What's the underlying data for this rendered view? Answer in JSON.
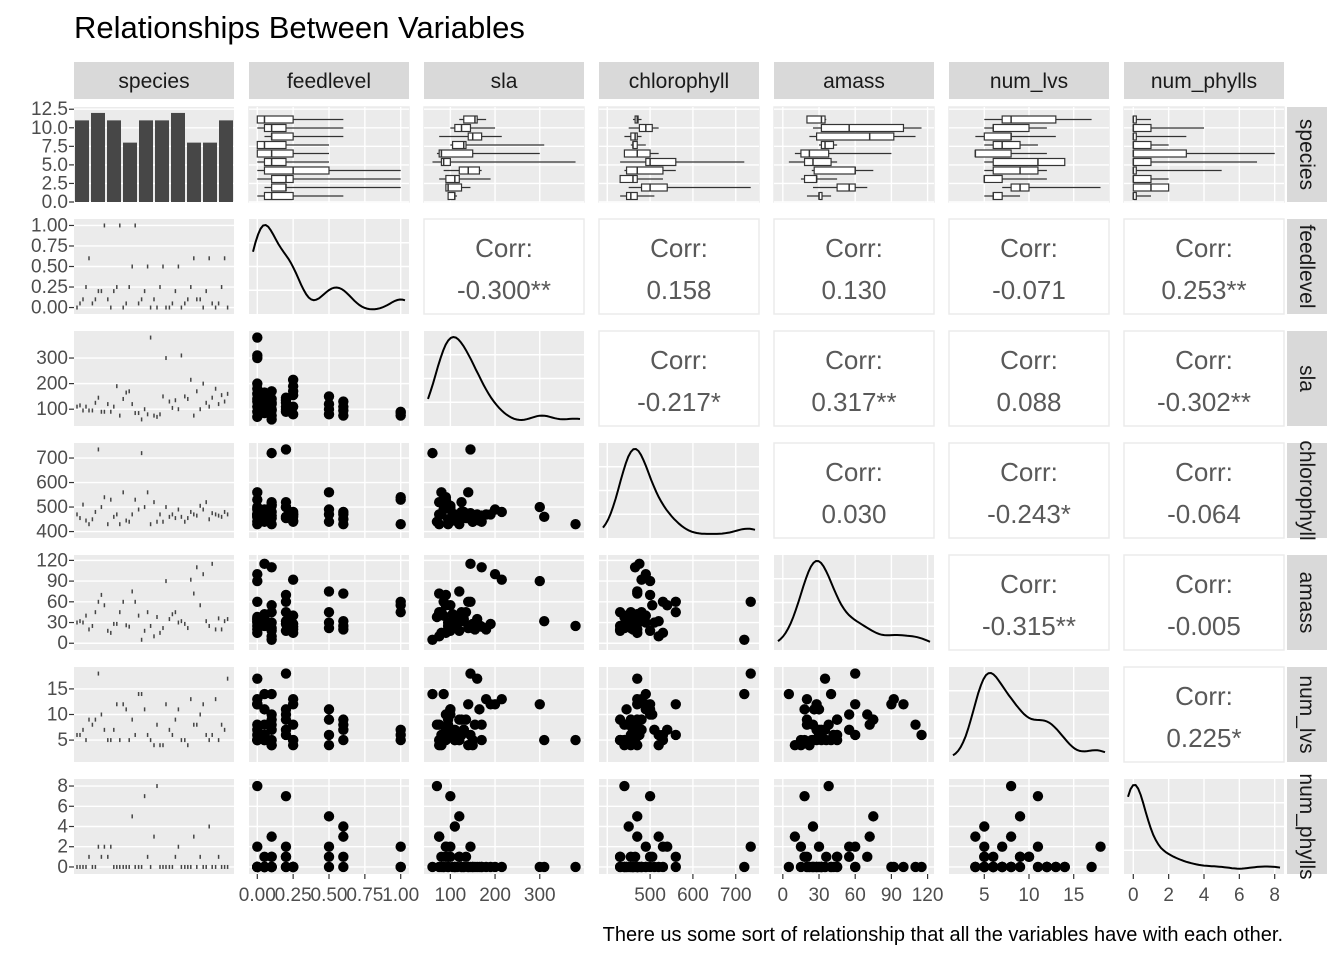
{
  "chart_data": {
    "type": "scatter",
    "title": "Relationships Between Variables",
    "caption": "There us some sort of relationship that all the variables have with each other.",
    "variables": [
      "species",
      "feedlevel",
      "sla",
      "chlorophyll",
      "amass",
      "num_lvs",
      "num_phylls"
    ],
    "axes": {
      "species": {
        "ticks": [
          "0.0",
          "2.5",
          "5.0",
          "7.5",
          "10.0",
          "12.5"
        ],
        "ylim": [
          0,
          12.5
        ]
      },
      "feedlevel": {
        "ticks": [
          "0.00",
          "0.25",
          "0.50",
          "0.75",
          "1.00"
        ],
        "range": [
          0,
          1
        ]
      },
      "sla": {
        "ticks": [
          "100",
          "200",
          "300"
        ],
        "range": [
          50,
          390
        ]
      },
      "chlorophyll": {
        "ticks_y": [
          "400",
          "500",
          "600",
          "700"
        ],
        "ticks_x": [
          "500",
          "600",
          "700"
        ],
        "range": [
          400,
          740
        ]
      },
      "amass": {
        "ticks": [
          "0",
          "30",
          "60",
          "90",
          "120"
        ],
        "range": [
          0,
          120
        ]
      },
      "num_lvs": {
        "ticks_y": [
          "5",
          "10",
          "15"
        ],
        "ticks_x": [
          "5",
          "10",
          "15"
        ],
        "range": [
          2,
          18
        ]
      },
      "num_phylls": {
        "ticks": [
          "0",
          "2",
          "4",
          "6",
          "8"
        ],
        "range": [
          0,
          8
        ]
      }
    },
    "species_counts": [
      11,
      12,
      11,
      8,
      11,
      11,
      12,
      8,
      8,
      11
    ],
    "correlations": [
      {
        "row": "feedlevel",
        "col": "sla",
        "label": "Corr:",
        "value": "-0.300**"
      },
      {
        "row": "feedlevel",
        "col": "chlorophyll",
        "label": "Corr:",
        "value": "0.158"
      },
      {
        "row": "feedlevel",
        "col": "amass",
        "label": "Corr:",
        "value": "0.130"
      },
      {
        "row": "feedlevel",
        "col": "num_lvs",
        "label": "Corr:",
        "value": "-0.071"
      },
      {
        "row": "feedlevel",
        "col": "num_phylls",
        "label": "Corr:",
        "value": "0.253**"
      },
      {
        "row": "sla",
        "col": "chlorophyll",
        "label": "Corr:",
        "value": "-0.217*"
      },
      {
        "row": "sla",
        "col": "amass",
        "label": "Corr:",
        "value": "0.317**"
      },
      {
        "row": "sla",
        "col": "num_lvs",
        "label": "Corr:",
        "value": "0.088"
      },
      {
        "row": "sla",
        "col": "num_phylls",
        "label": "Corr:",
        "value": "-0.302**"
      },
      {
        "row": "chlorophyll",
        "col": "amass",
        "label": "Corr:",
        "value": "0.030"
      },
      {
        "row": "chlorophyll",
        "col": "num_lvs",
        "label": "Corr:",
        "value": "-0.243*"
      },
      {
        "row": "chlorophyll",
        "col": "num_phylls",
        "label": "Corr:",
        "value": "-0.064"
      },
      {
        "row": "amass",
        "col": "num_lvs",
        "label": "Corr:",
        "value": "-0.315**"
      },
      {
        "row": "amass",
        "col": "num_phylls",
        "label": "Corr:",
        "value": "-0.005"
      },
      {
        "row": "num_lvs",
        "col": "num_phylls",
        "label": "Corr:",
        "value": "0.225*"
      }
    ],
    "observations": [
      [
        0.0,
        110,
        470,
        30,
        6,
        0
      ],
      [
        0.05,
        95,
        450,
        25,
        8,
        0
      ],
      [
        0.1,
        120,
        430,
        18,
        5,
        1
      ],
      [
        0.0,
        140,
        560,
        60,
        12,
        0
      ],
      [
        0.05,
        85,
        490,
        40,
        14,
        0
      ],
      [
        0.1,
        75,
        520,
        10,
        4,
        3
      ],
      [
        0.0,
        130,
        460,
        35,
        7,
        0
      ],
      [
        0.05,
        150,
        440,
        28,
        5,
        0
      ],
      [
        0.1,
        100,
        505,
        55,
        10,
        1
      ],
      [
        0.0,
        180,
        470,
        20,
        13,
        0
      ],
      [
        0.05,
        115,
        455,
        32,
        6,
        0
      ],
      [
        0.1,
        125,
        480,
        45,
        9,
        0
      ],
      [
        0.0,
        90,
        530,
        15,
        5,
        2
      ],
      [
        0.05,
        165,
        445,
        26,
        11,
        0
      ],
      [
        0.1,
        60,
        720,
        5,
        14,
        0
      ],
      [
        0.0,
        70,
        440,
        38,
        8,
        8
      ],
      [
        0.05,
        105,
        470,
        42,
        6,
        0
      ],
      [
        0.1,
        140,
        455,
        22,
        4,
        0
      ],
      [
        0.0,
        200,
        490,
        100,
        12,
        0
      ],
      [
        0.05,
        120,
        465,
        36,
        5,
        1
      ],
      [
        0.1,
        95,
        510,
        30,
        7,
        0
      ],
      [
        0.2,
        145,
        735,
        60,
        18,
        2
      ],
      [
        0.2,
        110,
        460,
        28,
        7,
        0
      ],
      [
        0.25,
        170,
        440,
        24,
        5,
        0
      ],
      [
        0.2,
        100,
        500,
        18,
        11,
        7
      ],
      [
        0.25,
        80,
        470,
        15,
        4,
        0
      ],
      [
        0.2,
        135,
        455,
        45,
        9,
        1
      ],
      [
        0.25,
        215,
        480,
        92,
        13,
        0
      ],
      [
        0.2,
        125,
        520,
        32,
        6,
        0
      ],
      [
        0.25,
        155,
        460,
        20,
        8,
        0
      ],
      [
        0.25,
        110,
        445,
        40,
        5,
        0
      ],
      [
        0.2,
        90,
        500,
        70,
        10,
        1
      ],
      [
        0.25,
        190,
        470,
        28,
        12,
        0
      ],
      [
        0.5,
        120,
        470,
        75,
        9,
        5
      ],
      [
        0.5,
        80,
        560,
        45,
        6,
        1
      ],
      [
        0.5,
        150,
        440,
        22,
        4,
        0
      ],
      [
        0.5,
        100,
        490,
        30,
        11,
        2
      ],
      [
        0.6,
        75,
        470,
        72,
        8,
        3
      ],
      [
        0.6,
        110,
        450,
        25,
        5,
        4
      ],
      [
        0.6,
        130,
        480,
        32,
        7,
        0
      ],
      [
        0.6,
        95,
        430,
        20,
        9,
        1
      ],
      [
        1.0,
        90,
        540,
        55,
        7,
        2
      ],
      [
        1.0,
        75,
        430,
        45,
        5,
        0
      ],
      [
        1.0,
        85,
        530,
        60,
        6,
        0
      ],
      [
        0.0,
        380,
        430,
        25,
        5,
        0
      ],
      [
        0.0,
        300,
        500,
        90,
        12,
        0
      ],
      [
        0.0,
        310,
        460,
        32,
        5,
        0
      ],
      [
        0.1,
        170,
        465,
        110,
        8,
        0
      ],
      [
        0.05,
        145,
        475,
        115,
        6,
        0
      ],
      [
        0.0,
        160,
        470,
        35,
        17,
        0
      ]
    ]
  }
}
